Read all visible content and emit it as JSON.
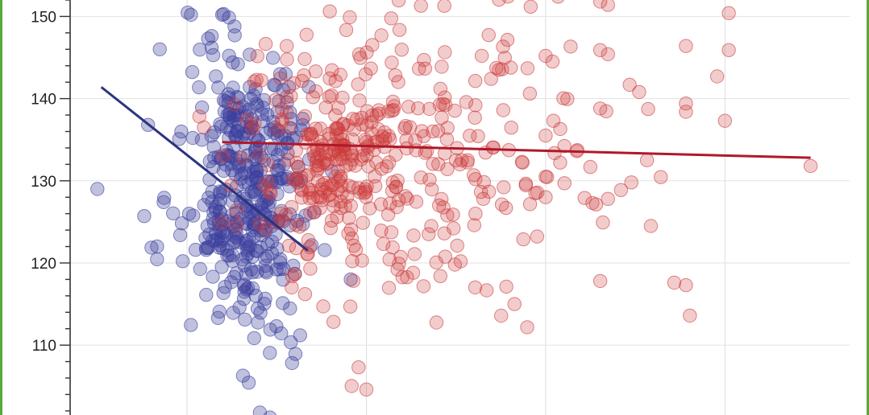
{
  "chart_data": {
    "type": "scatter",
    "title": "",
    "xlabel": "",
    "ylabel": "",
    "xlim": [
      0,
      100
    ],
    "ylim": [
      101.5,
      152
    ],
    "yticks": [
      110,
      120,
      130,
      140,
      150
    ],
    "ytick_labels": [
      "110",
      "120",
      "130",
      "140",
      "150"
    ],
    "xgrid": [
      15,
      38,
      61,
      84
    ],
    "grid": true,
    "colors": {
      "blue": "#3b3f9c",
      "red": "#cc3a3a",
      "blue_line": "#2c3480",
      "red_line": "#b0182a",
      "frame": "#5aa83c"
    },
    "series": [
      {
        "color": "blue",
        "clusters": [
          {
            "cx": 22,
            "cy": 127,
            "sx": 4.2,
            "sy": 8.5,
            "n": 330
          },
          {
            "cx": 24,
            "cy": 137,
            "sx": 3.0,
            "sy": 3.5,
            "n": 60
          },
          {
            "cx": 18,
            "cy": 147,
            "sx": 1.5,
            "sy": 3.0,
            "n": 10
          }
        ],
        "points": [
          [
            3.5,
            129
          ],
          [
            9.5,
            125.7
          ],
          [
            10.0,
            136.8
          ],
          [
            11.5,
            146
          ],
          [
            12,
            127.4
          ],
          [
            15.5,
            150.2
          ],
          [
            19.5,
            150.2
          ],
          [
            29.5,
            111.2
          ],
          [
            36,
            118
          ]
        ],
        "trend": {
          "x": [
            4,
            30.5
          ],
          "y": [
            141.4,
            121.5
          ]
        }
      },
      {
        "color": "red",
        "clusters": [
          {
            "cx": 36,
            "cy": 132,
            "sx": 7.5,
            "sy": 8.0,
            "n": 260
          },
          {
            "cx": 52,
            "cy": 133,
            "sx": 9.0,
            "sy": 9.0,
            "n": 100
          },
          {
            "cx": 34,
            "cy": 134.5,
            "sx": 2.5,
            "sy": 2.0,
            "n": 40
          },
          {
            "cx": 33,
            "cy": 129.5,
            "sx": 2.0,
            "sy": 1.5,
            "n": 25
          }
        ],
        "points": [
          [
            95,
            131.8
          ],
          [
            84.5,
            150.4
          ],
          [
            84.5,
            145.9
          ],
          [
            83,
            142.7
          ],
          [
            84,
            137.3
          ],
          [
            79,
            146.4
          ],
          [
            73,
            140.8
          ],
          [
            79,
            139.4
          ],
          [
            79,
            138.4
          ],
          [
            74,
            132.5
          ],
          [
            74.5,
            124.5
          ],
          [
            77.5,
            117.6
          ],
          [
            79,
            117.3
          ],
          [
            79.5,
            113.6
          ],
          [
            68,
            117.8
          ],
          [
            61,
            145.2
          ],
          [
            68,
            145.9
          ],
          [
            69,
            145.4
          ],
          [
            62,
            137.3
          ],
          [
            61,
            135.5
          ],
          [
            61,
            130.5
          ],
          [
            61,
            128
          ],
          [
            66,
            127.9
          ],
          [
            67,
            127.3
          ],
          [
            69,
            127.8
          ],
          [
            72,
            129.8
          ],
          [
            68,
            138.8
          ],
          [
            65,
            133.6
          ],
          [
            55,
            143.5
          ],
          [
            54,
            142.4
          ],
          [
            52,
            139.2
          ],
          [
            52,
            130.2
          ],
          [
            52,
            126
          ],
          [
            53,
            127.8
          ],
          [
            57,
            115
          ],
          [
            47.5,
            118.4
          ],
          [
            44,
            118.8
          ],
          [
            46,
            123.5
          ],
          [
            45,
            130.4
          ],
          [
            50,
            132
          ],
          [
            51,
            132.5
          ],
          [
            37,
            107.3
          ],
          [
            38,
            104.6
          ],
          [
            42,
            119.2
          ],
          [
            48,
            123.6
          ],
          [
            45,
            151.3
          ],
          [
            48,
            151.3
          ],
          [
            68,
            151.8
          ],
          [
            69,
            151.4
          ]
        ],
        "trend": {
          "x": [
            19.5,
            95
          ],
          "y": [
            134.7,
            132.8
          ]
        }
      }
    ]
  }
}
